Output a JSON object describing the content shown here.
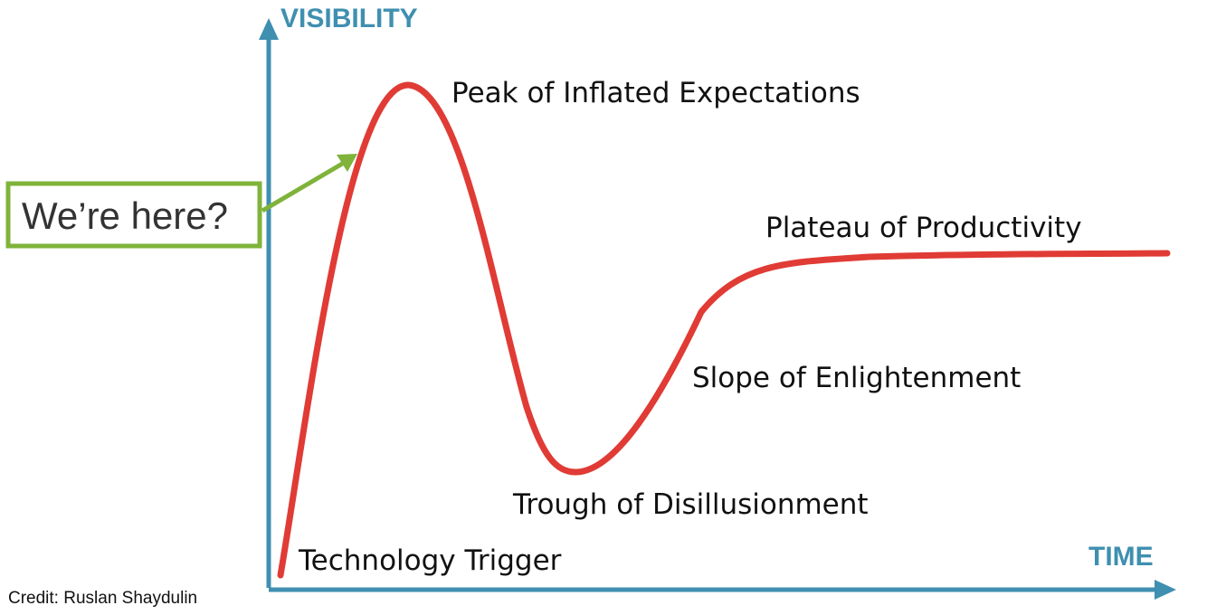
{
  "diagram": {
    "type": "hype-cycle",
    "colors": {
      "axis": "#3f8fb0",
      "curve": "#e03b35",
      "callout": "#7fb33a",
      "text": "#111111"
    },
    "axes": {
      "y_label": "VISIBILITY",
      "x_label": "TIME"
    },
    "phases": [
      "Technology Trigger",
      "Peak of Inflated Expectations",
      "Trough of Disillusionment",
      "Slope of Enlightenment",
      "Plateau of Productivity"
    ],
    "callout": {
      "text": "We’re here?"
    },
    "credit": "Credit: Ruslan Shaydulin"
  }
}
